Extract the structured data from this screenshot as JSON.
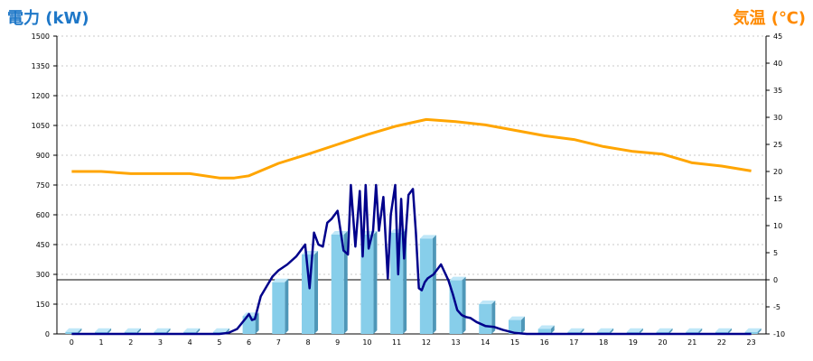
{
  "chart_data": {
    "type": "bar",
    "title_left": "電力 (kW)",
    "title_right": "気温 (℃)",
    "categories": [
      "0",
      "1",
      "2",
      "3",
      "4",
      "5",
      "6",
      "7",
      "8",
      "9",
      "10",
      "11",
      "12",
      "13",
      "14",
      "15",
      "16",
      "17",
      "18",
      "19",
      "20",
      "21",
      "22",
      "23"
    ],
    "y_left": {
      "min": 0,
      "max": 1500,
      "ticks": [
        0,
        150,
        300,
        450,
        600,
        750,
        900,
        1050,
        1200,
        1350,
        1500
      ]
    },
    "y_right": {
      "min": -10,
      "max": 45,
      "ticks": [
        -10,
        -5,
        0,
        5,
        10,
        15,
        20,
        25,
        30,
        35,
        40,
        45
      ]
    },
    "grid": true,
    "colors": {
      "bars": "#87ceea",
      "bar_side": "#4f97b8",
      "bar_top": "#bfe7f8",
      "power_line": "#00008b",
      "temp_line": "#ffa500",
      "grid": "#c8c8c8"
    },
    "bar_values": [
      10,
      10,
      10,
      10,
      10,
      10,
      90,
      260,
      400,
      500,
      500,
      510,
      480,
      270,
      150,
      70,
      25,
      10,
      10,
      10,
      10,
      10,
      10,
      10
    ],
    "power_line": {
      "x": [
        0,
        1,
        2,
        3,
        4,
        5,
        5.3,
        5.6,
        5.9,
        6.0,
        6.1,
        6.2,
        6.4,
        6.6,
        6.8,
        7.0,
        7.3,
        7.6,
        7.9,
        8.05,
        8.2,
        8.35,
        8.5,
        8.65,
        8.8,
        9.0,
        9.2,
        9.35,
        9.45,
        9.6,
        9.75,
        9.85,
        9.95,
        10.05,
        10.2,
        10.3,
        10.4,
        10.55,
        10.7,
        10.8,
        10.95,
        11.05,
        11.15,
        11.25,
        11.4,
        11.55,
        11.65,
        11.75,
        11.85,
        11.95,
        12.05,
        12.25,
        12.5,
        12.75,
        12.9,
        13.05,
        13.2,
        13.35,
        13.5,
        13.7,
        14.0,
        14.3,
        14.6,
        15.0,
        15.4,
        15.8,
        16.2,
        16.6,
        17,
        18,
        19,
        20,
        21,
        22,
        23
      ],
      "y": [
        0,
        0,
        0,
        0,
        0,
        0,
        5,
        25,
        80,
        100,
        70,
        75,
        190,
        240,
        290,
        320,
        350,
        390,
        450,
        230,
        510,
        450,
        440,
        560,
        580,
        620,
        420,
        400,
        750,
        440,
        720,
        390,
        750,
        430,
        520,
        750,
        520,
        690,
        280,
        600,
        750,
        300,
        680,
        380,
        700,
        730,
        510,
        230,
        220,
        260,
        280,
        300,
        350,
        270,
        200,
        120,
        95,
        85,
        80,
        60,
        40,
        35,
        20,
        5,
        0,
        0,
        0,
        0,
        0,
        0,
        0,
        0,
        0,
        0,
        0
      ]
    },
    "temp_line": {
      "x": [
        0,
        1,
        2,
        3,
        4,
        5,
        5.5,
        6,
        7,
        8,
        9,
        10,
        11,
        12,
        13,
        14,
        15,
        16,
        17,
        18,
        19,
        20,
        21,
        22,
        23
      ],
      "y": [
        20,
        20,
        19.6,
        19.6,
        19.6,
        18.8,
        18.8,
        19.2,
        21.5,
        23.2,
        25,
        26.8,
        28.4,
        29.6,
        29.2,
        28.6,
        27.6,
        26.6,
        25.9,
        24.6,
        23.7,
        23.2,
        21.6,
        21,
        20.1
      ]
    }
  }
}
